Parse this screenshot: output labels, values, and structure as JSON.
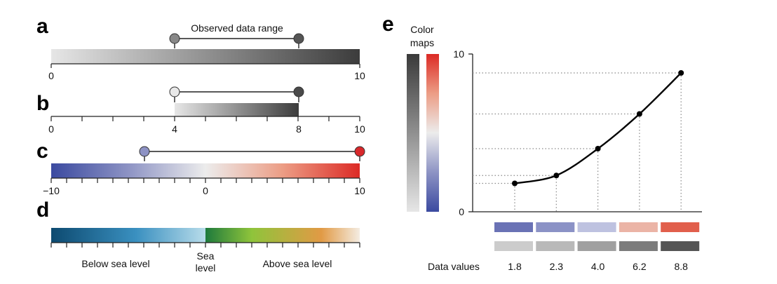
{
  "panel_a": {
    "letter": "a",
    "range_label": "Observed data range",
    "axis_ticks": [
      "0",
      "10"
    ],
    "gradient": [
      "#e6e6e6",
      "#3c3c3c"
    ],
    "pin_colors": [
      "#888888",
      "#555555"
    ]
  },
  "panel_b": {
    "letter": "b",
    "axis_ticks": [
      "0",
      "4",
      "8",
      "10"
    ],
    "gradient": [
      "#e6e6e6",
      "#3c3c3c"
    ],
    "pin_colors": [
      "#e8e8e8",
      "#4a4a4a"
    ]
  },
  "panel_c": {
    "letter": "c",
    "axis_ticks": [
      "−10",
      "0",
      "10"
    ],
    "gradient": [
      "#3b4aa0",
      "#8d93c4",
      "#ececec",
      "#ec9d85",
      "#dc2a25"
    ],
    "pin_colors": [
      "#8d92c4",
      "#d8282b"
    ]
  },
  "panel_d": {
    "letter": "d",
    "labels": {
      "below": "Below sea level",
      "sea_1": "Sea",
      "sea_2": "level",
      "above": "Above sea level"
    },
    "gradient_below": [
      "#0d4a70",
      "#3a90c0",
      "#b8dcea"
    ],
    "gradient_above": [
      "#1e7a3c",
      "#8fc43b",
      "#e19a45",
      "#f4ece2"
    ]
  },
  "panel_e": {
    "letter": "e",
    "colormaps_title_1": "Color",
    "colormaps_title_2": "maps",
    "y_ticks": [
      "0",
      "10"
    ],
    "data_values_label": "Data values",
    "diverging_swatches": [
      "#6a72b5",
      "#8b92c6",
      "#bec2e0",
      "#ebb4a6",
      "#e15f4c"
    ],
    "gray_swatches": [
      "#cccccc",
      "#b9b9b9",
      "#a0a0a0",
      "#7c7c7c",
      "#555555"
    ]
  },
  "chart_data": {
    "type": "line",
    "x": [
      1,
      2,
      3,
      4,
      5
    ],
    "y": [
      1.8,
      2.3,
      4.0,
      6.2,
      8.8
    ],
    "x_tick_labels": [
      "1.8",
      "2.3",
      "4.0",
      "6.2",
      "8.8"
    ],
    "xlabel": "Data values",
    "ylim": [
      0,
      10
    ],
    "y_ticks": [
      0,
      10
    ],
    "grid": false
  }
}
